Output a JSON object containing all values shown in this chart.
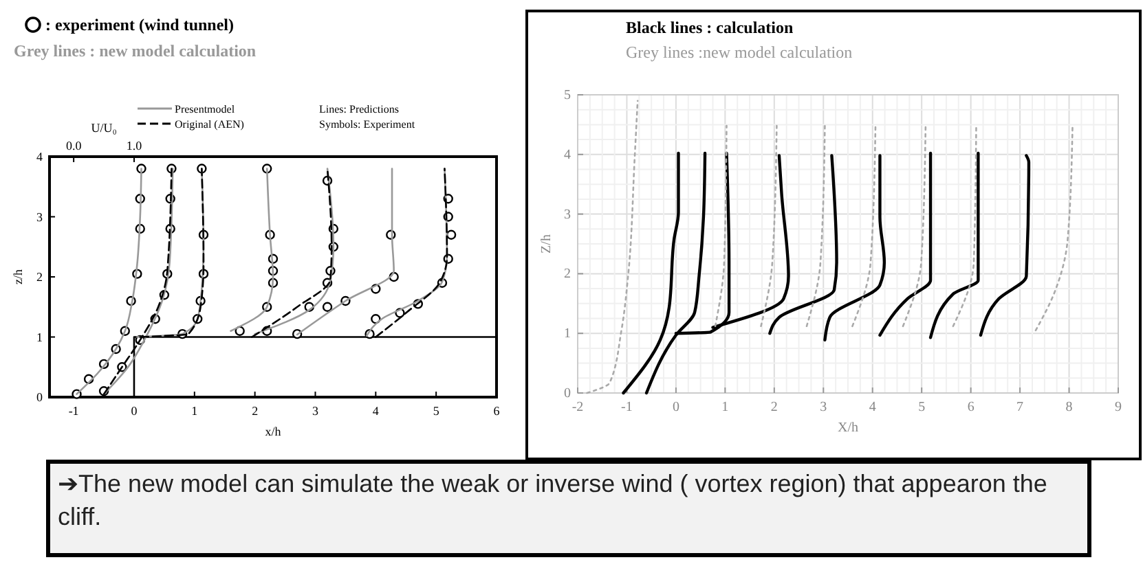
{
  "chart_data": [
    {
      "type": "line",
      "xlabel": "x/h",
      "ylabel": "z/h",
      "x2label": "U/U₀",
      "xlim": [
        -1.4,
        6
      ],
      "ylim": [
        0,
        4
      ],
      "xticks": [
        -1,
        0,
        1,
        2,
        3,
        4,
        5,
        6
      ],
      "yticks": [
        0,
        1,
        2,
        3,
        4
      ],
      "x2lim": [
        -0.4,
        7
      ],
      "x2ticks": [
        {
          "value": 0,
          "label": "0.0"
        },
        {
          "value": 1,
          "label": "1.0"
        }
      ],
      "grid": false,
      "legend": "top",
      "annotations": [
        "Grey lines : new model calculation",
        "Lines: Predictions",
        "Symbols: Experiment"
      ],
      "series": [
        {
          "color": "#000000",
          "line_style": "solid",
          "x": [
            0,
            0,
            6
          ],
          "values": [
            0,
            1,
            1
          ]
        },
        {
          "type": "scatter",
          "name": ": experiment (wind tunnel)",
          "color": "#000000",
          "marker": "circle",
          "x": [
            -0.95,
            -0.75,
            -0.5,
            -0.3,
            -0.15,
            -0.05,
            0.05,
            0.1,
            0.1,
            0.12,
            -0.5,
            -0.2,
            0.1,
            0.35,
            0.5,
            0.55,
            0.6,
            0.6,
            0.62,
            0.8,
            1.05,
            1.1,
            1.15,
            1.15,
            1.12,
            1.75,
            2.2,
            2.3,
            2.3,
            2.3,
            2.25,
            2.2,
            2.2,
            2.9,
            3.2,
            3.25,
            3.3,
            3.3,
            3.2,
            2.7,
            3.2,
            3.5,
            4.0,
            4.3,
            4.25,
            3.9,
            4.0,
            4.4,
            4.7,
            5.1,
            5.2,
            5.25,
            5.2,
            5.2
          ],
          "values": [
            0.05,
            0.3,
            0.55,
            0.8,
            1.1,
            1.6,
            2.05,
            2.8,
            3.3,
            3.8,
            0.1,
            0.5,
            0.95,
            1.3,
            1.7,
            2.05,
            2.8,
            3.3,
            3.8,
            1.05,
            1.3,
            1.6,
            2.05,
            2.7,
            3.8,
            1.1,
            1.5,
            1.9,
            2.1,
            2.3,
            2.7,
            3.8,
            1.1,
            1.5,
            1.9,
            2.1,
            2.5,
            2.8,
            3.6,
            1.05,
            1.5,
            1.6,
            1.8,
            2.0,
            2.7,
            1.05,
            1.3,
            1.4,
            1.55,
            1.9,
            2.3,
            2.7,
            3.0,
            3.3
          ]
        },
        {
          "name": "Presentmodel",
          "color": "#999999",
          "line_style": "solid",
          "x": [
            -0.95,
            -0.6,
            -0.3,
            -0.15,
            -0.03,
            0.05,
            0.1,
            0.12
          ],
          "values": [
            0.05,
            0.4,
            0.8,
            1.1,
            1.6,
            2.2,
            3,
            3.8
          ]
        },
        {
          "color": "#999999",
          "line_style": "solid",
          "x": [
            -0.5,
            -0.1,
            0.18,
            0.48,
            0.59,
            0.64
          ],
          "values": [
            0.05,
            0.5,
            0.97,
            1.65,
            2.26,
            3.8
          ]
        },
        {
          "color": "#999999",
          "line_style": "solid",
          "x": [
            0.05,
            0.8,
            1.05,
            1.12,
            1.15,
            1.12
          ],
          "values": [
            1.0,
            1.05,
            1.3,
            1.8,
            2.5,
            3.8
          ]
        },
        {
          "color": "#999999",
          "line_style": "solid",
          "x": [
            1.6,
            2.2,
            2.3,
            2.25,
            2.2
          ],
          "values": [
            1.1,
            1.5,
            2.0,
            2.7,
            3.8
          ]
        },
        {
          "color": "#999999",
          "line_style": "solid",
          "x": [
            2.0,
            2.9,
            3.25,
            3.3,
            3.2
          ],
          "values": [
            1.05,
            1.45,
            1.95,
            2.5,
            3.8
          ]
        },
        {
          "color": "#999999",
          "line_style": "solid",
          "x": [
            2.7,
            3.5,
            4.3,
            4.27,
            4.27
          ],
          "values": [
            1.04,
            1.6,
            2.1,
            2.7,
            3.8
          ]
        },
        {
          "color": "#999999",
          "line_style": "solid",
          "x": [
            3.85,
            4.1,
            4.7,
            5.1,
            5.18,
            5.14
          ],
          "values": [
            1.02,
            1.3,
            1.6,
            1.92,
            2.34,
            3.8
          ]
        },
        {
          "name": "Original (AEN)",
          "color": "#000000",
          "line_style": "dashed",
          "x": [
            -0.5,
            -0.2,
            0.1,
            0.4,
            0.55,
            0.62
          ],
          "values": [
            0.05,
            0.5,
            0.95,
            1.5,
            2.1,
            3.8
          ]
        },
        {
          "color": "#000000",
          "line_style": "dashed",
          "x": [
            0.1,
            0.9,
            1.1,
            1.15,
            1.12
          ],
          "values": [
            1.0,
            1.05,
            1.5,
            2.2,
            3.8
          ]
        },
        {
          "color": "#000000",
          "line_style": "dashed",
          "x": [
            1.95,
            2.7,
            3.25,
            3.27,
            3.2
          ],
          "values": [
            1.0,
            1.5,
            1.96,
            2.5,
            3.8
          ]
        },
        {
          "color": "#000000",
          "line_style": "dashed",
          "x": [
            4.0,
            4.5,
            5.07,
            5.18,
            5.14
          ],
          "values": [
            1.0,
            1.4,
            1.92,
            2.34,
            3.8
          ]
        }
      ]
    },
    {
      "type": "line",
      "xlabel": "X/h",
      "ylabel": "Z/h",
      "xlim": [
        -2,
        9
      ],
      "ylim": [
        0,
        5
      ],
      "xticks": [
        -2,
        -1,
        0,
        1,
        2,
        3,
        4,
        5,
        6,
        7,
        8,
        9
      ],
      "yticks": [
        0,
        1,
        2,
        3,
        4,
        5
      ],
      "grid": true,
      "legend": "top",
      "annotations": [
        "➔The new model can simulate the weak or inverse wind ( vortex region) that appearon the cliff."
      ],
      "series": [
        {
          "name": "Black lines : calculation",
          "color": "#000000",
          "line_style": "solid",
          "x": [
            -1.07,
            -0.32,
            -0.14,
            -0.04,
            0.05,
            0.05
          ],
          "values": [
            0,
            0.89,
            1.43,
            2.57,
            3.03,
            4.02
          ]
        },
        {
          "color": "#000000",
          "line_style": "solid",
          "x": [
            -0.6,
            0.0,
            0.38,
            0.47,
            0.56,
            0.59
          ],
          "values": [
            0,
            0.97,
            1.35,
            1.96,
            2.95,
            4.02
          ]
        },
        {
          "color": "#000000",
          "line_style": "solid",
          "x": [
            0.0,
            0.7,
            1.08,
            1.08,
            1.03
          ],
          "values": [
            1.0,
            1.02,
            1.35,
            2.19,
            4.02
          ]
        },
        {
          "color": "#000000",
          "line_style": "solid",
          "x": [
            0.75,
            2.19,
            2.29,
            2.15,
            2.1
          ],
          "values": [
            1.1,
            1.58,
            1.96,
            3.34,
            3.98
          ]
        },
        {
          "color": "#000000",
          "line_style": "solid",
          "x": [
            1.91,
            2.1,
            3.22,
            3.27,
            3.17
          ],
          "values": [
            1.0,
            1.27,
            1.73,
            2.19,
            3.98
          ]
        },
        {
          "color": "#000000",
          "line_style": "solid",
          "x": [
            3.03,
            3.13,
            4.15,
            4.24,
            4.15,
            4.15
          ],
          "values": [
            0.89,
            1.27,
            1.81,
            2.19,
            2.95,
            3.98
          ]
        },
        {
          "color": "#000000",
          "line_style": "solid",
          "x": [
            4.15,
            4.71,
            5.18,
            5.18
          ],
          "values": [
            0.97,
            1.58,
            1.89,
            4.02
          ]
        },
        {
          "color": "#000000",
          "line_style": "solid",
          "x": [
            5.18,
            5.64,
            6.15,
            6.15
          ],
          "values": [
            0.93,
            1.66,
            1.89,
            4.02
          ]
        },
        {
          "color": "#000000",
          "line_style": "solid",
          "x": [
            6.2,
            6.57,
            7.13,
            7.18,
            7.13
          ],
          "values": [
            0.97,
            1.58,
            1.96,
            3.87,
            3.98
          ]
        },
        {
          "name": "Grey lines :new model calculation",
          "color": "#aaaaaa",
          "line_style": "dotted",
          "x": [
            -1.81,
            -1.35,
            -1.11,
            -0.97,
            -0.84,
            -0.78
          ],
          "values": [
            0,
            0.17,
            1.05,
            2.0,
            3.95,
            4.9
          ]
        },
        {
          "color": "#aaaaaa",
          "line_style": "dotted",
          "x": [
            0.8,
            0.98,
            1.03
          ],
          "values": [
            1.12,
            2.19,
            4.48
          ]
        },
        {
          "color": "#aaaaaa",
          "line_style": "dotted",
          "x": [
            1.73,
            1.96,
            2.05
          ],
          "values": [
            1.12,
            2.19,
            4.48
          ]
        },
        {
          "color": "#aaaaaa",
          "line_style": "dotted",
          "x": [
            2.66,
            2.94,
            3.03
          ],
          "values": [
            1.12,
            2.19,
            4.48
          ]
        },
        {
          "color": "#aaaaaa",
          "line_style": "dotted",
          "x": [
            3.59,
            3.96,
            4.06
          ],
          "values": [
            1.12,
            2.19,
            4.48
          ]
        },
        {
          "color": "#aaaaaa",
          "line_style": "dotted",
          "x": [
            4.62,
            4.99,
            5.08
          ],
          "values": [
            1.12,
            2.19,
            4.48
          ]
        },
        {
          "color": "#aaaaaa",
          "line_style": "dotted",
          "x": [
            5.64,
            6.06,
            6.11
          ],
          "values": [
            1.12,
            2.19,
            4.48
          ]
        },
        {
          "color": "#aaaaaa",
          "line_style": "dotted",
          "x": [
            7.32,
            7.69,
            7.97,
            8.07
          ],
          "values": [
            1.05,
            1.66,
            2.57,
            4.48
          ]
        }
      ]
    }
  ]
}
